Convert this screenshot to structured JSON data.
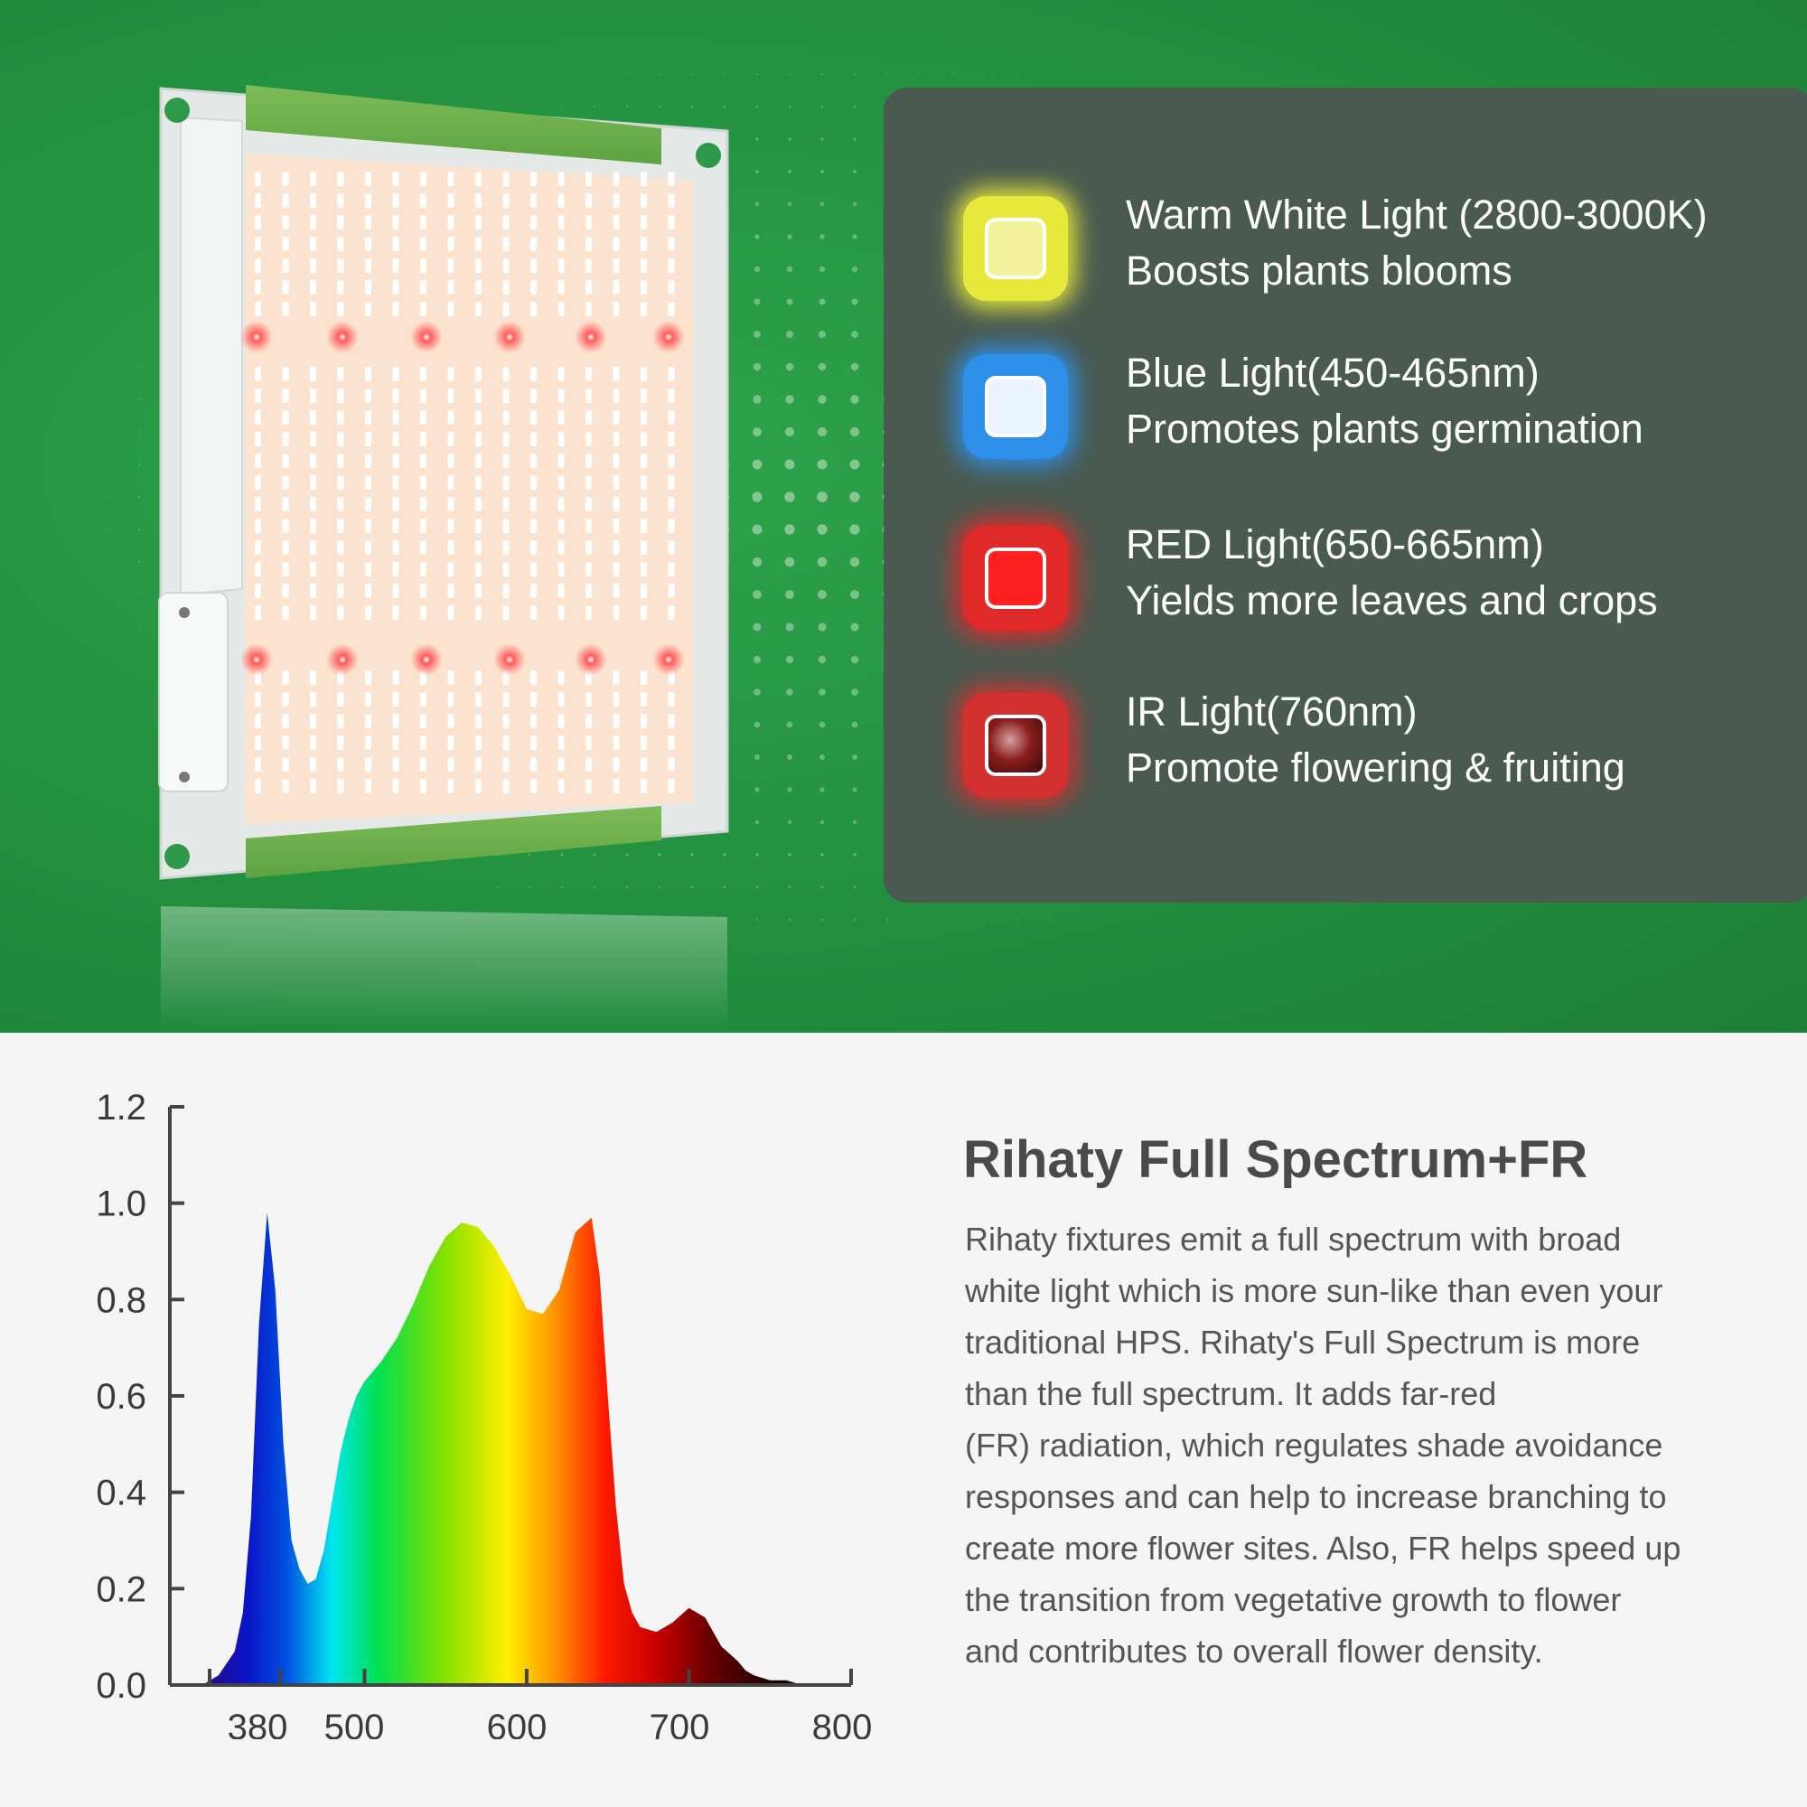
{
  "legend": {
    "items": [
      {
        "id": "warm-white",
        "line1": "Warm White Light (2800-3000K)",
        "line2": "Boosts plants blooms",
        "color": "#f2f29a",
        "glow": "#e6e83a"
      },
      {
        "id": "blue",
        "line1": "Blue Light(450-465nm)",
        "line2": "Promotes plants germination",
        "color": "#eaf3ff",
        "glow": "#2e8fe8"
      },
      {
        "id": "red",
        "line1": "RED Light(650-665nm)",
        "line2": "Yields more leaves and crops",
        "color": "#ff2020",
        "glow": "#e02a2a"
      },
      {
        "id": "ir",
        "line1": "IR Light(760nm)",
        "line2": "Promote flowering & fruiting",
        "color": "#7a1a1a",
        "glow": "#d33030"
      }
    ]
  },
  "description": {
    "title": "Rihaty Full Spectrum+FR",
    "lines": [
      "Rihaty fixtures emit a full spectrum with broad",
      "white light which is more sun-like than even your",
      "traditional HPS. Rihaty's Full Spectrum is more",
      "than the full spectrum. It adds far-red",
      "(FR) radiation, which regulates shade avoidance",
      "responses and can help to increase branching to",
      "create more flower sites. Also, FR helps speed up",
      "the transition from vegetative growth to flower",
      "and contributes to overall flower density."
    ]
  },
  "colors": {
    "background_green": "#23903f",
    "card": "#4a5a50",
    "panel_leds": "#fbe3cf",
    "panel_frame": "#e4e8e6",
    "panel_rails": "#6fb24e"
  },
  "chart_data": {
    "type": "area",
    "title": "",
    "xlabel": "",
    "ylabel": "",
    "xlim": [
      380,
      800
    ],
    "ylim": [
      0,
      1.2
    ],
    "x_ticks": [
      380,
      500,
      600,
      700,
      800
    ],
    "x_tick_labels": [
      "380",
      "500",
      "600",
      "700",
      "800"
    ],
    "y_ticks": [
      0.0,
      0.2,
      0.4,
      0.6,
      0.8,
      1.0,
      1.2
    ],
    "y_tick_labels": [
      "0.0",
      "0.2",
      "0.4",
      "0.6",
      "0.8",
      "1.0",
      "1.2"
    ],
    "grid": false,
    "fill": "wavelength-rainbow",
    "series": [
      {
        "x": [
          400,
          410,
          420,
          425,
          430,
          435,
          440,
          445,
          450,
          455,
          460,
          465,
          470,
          475,
          480,
          485,
          490,
          495,
          500,
          510,
          520,
          530,
          540,
          550,
          560,
          570,
          580,
          590,
          600,
          610,
          620,
          630,
          640,
          645,
          650,
          655,
          660,
          665,
          670,
          680,
          690,
          700,
          710,
          720,
          730,
          735,
          740,
          750,
          760,
          770,
          780,
          800
        ],
        "values": [
          0.0,
          0.02,
          0.07,
          0.15,
          0.35,
          0.75,
          0.98,
          0.82,
          0.5,
          0.3,
          0.24,
          0.21,
          0.22,
          0.28,
          0.38,
          0.48,
          0.55,
          0.6,
          0.63,
          0.67,
          0.72,
          0.79,
          0.87,
          0.93,
          0.96,
          0.95,
          0.91,
          0.85,
          0.78,
          0.77,
          0.82,
          0.94,
          0.97,
          0.85,
          0.6,
          0.37,
          0.21,
          0.15,
          0.12,
          0.11,
          0.13,
          0.16,
          0.14,
          0.08,
          0.05,
          0.03,
          0.02,
          0.01,
          0.01,
          0.0,
          0.0,
          0.0
        ]
      }
    ]
  }
}
